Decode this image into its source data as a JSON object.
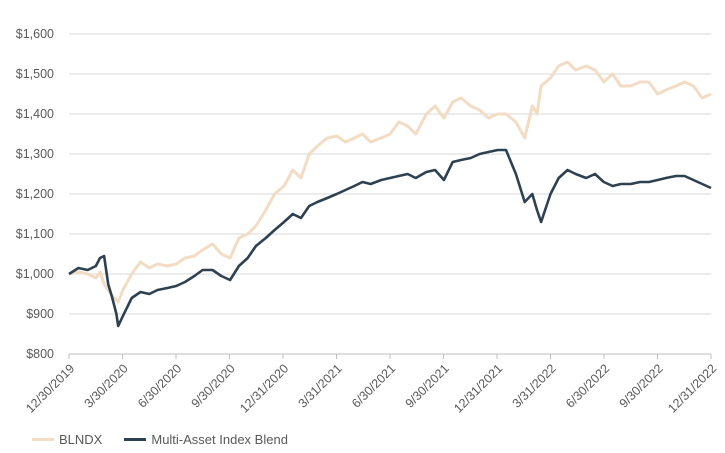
{
  "chart_data": {
    "type": "line",
    "title": "",
    "xlabel": "",
    "ylabel": "",
    "ylim": [
      800,
      1600
    ],
    "yticks": [
      "$800",
      "$900",
      "$1,000",
      "$1,100",
      "$1,200",
      "$1,300",
      "$1,400",
      "$1,500",
      "$1,600"
    ],
    "xticks": [
      "12/30/2019",
      "3/30/2020",
      "6/30/2020",
      "9/30/2020",
      "12/31/2020",
      "3/31/2021",
      "6/30/2021",
      "9/30/2021",
      "12/31/2021",
      "3/31/2022",
      "6/30/2022",
      "9/30/2022",
      "12/31/2022"
    ],
    "grid": "horizontal",
    "legend_position": "bottom-left",
    "x": [
      "2019-12-30",
      "2020-01-15",
      "2020-01-31",
      "2020-02-14",
      "2020-02-21",
      "2020-02-28",
      "2020-03-06",
      "2020-03-13",
      "2020-03-20",
      "2020-03-23",
      "2020-03-31",
      "2020-04-15",
      "2020-04-30",
      "2020-05-15",
      "2020-05-29",
      "2020-06-15",
      "2020-06-30",
      "2020-07-15",
      "2020-07-31",
      "2020-08-14",
      "2020-08-31",
      "2020-09-15",
      "2020-09-30",
      "2020-10-15",
      "2020-10-30",
      "2020-11-13",
      "2020-11-30",
      "2020-12-15",
      "2020-12-31",
      "2021-01-15",
      "2021-01-29",
      "2021-02-12",
      "2021-02-26",
      "2021-03-15",
      "2021-03-31",
      "2021-04-15",
      "2021-04-30",
      "2021-05-14",
      "2021-05-28",
      "2021-06-15",
      "2021-06-30",
      "2021-07-15",
      "2021-07-30",
      "2021-08-13",
      "2021-08-31",
      "2021-09-15",
      "2021-09-30",
      "2021-10-15",
      "2021-10-29",
      "2021-11-15",
      "2021-11-30",
      "2021-12-15",
      "2021-12-31",
      "2022-01-14",
      "2022-01-31",
      "2022-02-15",
      "2022-02-28",
      "2022-03-08",
      "2022-03-15",
      "2022-03-31",
      "2022-04-14",
      "2022-04-29",
      "2022-05-13",
      "2022-05-31",
      "2022-06-15",
      "2022-06-30",
      "2022-07-15",
      "2022-07-29",
      "2022-08-15",
      "2022-08-31",
      "2022-09-15",
      "2022-09-30",
      "2022-10-14",
      "2022-10-31",
      "2022-11-15",
      "2022-11-30",
      "2022-12-15",
      "2022-12-30"
    ],
    "series": [
      {
        "name": "BLNDX",
        "color": "#f2dcc3",
        "values": [
          1000,
          1005,
          1000,
          990,
          1005,
          975,
          960,
          945,
          935,
          930,
          960,
          1000,
          1030,
          1015,
          1025,
          1020,
          1025,
          1040,
          1045,
          1060,
          1075,
          1050,
          1040,
          1090,
          1100,
          1120,
          1160,
          1200,
          1220,
          1260,
          1240,
          1300,
          1320,
          1340,
          1345,
          1330,
          1340,
          1350,
          1330,
          1340,
          1350,
          1380,
          1370,
          1350,
          1400,
          1420,
          1390,
          1430,
          1440,
          1420,
          1410,
          1390,
          1400,
          1400,
          1380,
          1340,
          1420,
          1400,
          1470,
          1490,
          1520,
          1530,
          1510,
          1520,
          1510,
          1480,
          1500,
          1470,
          1470,
          1480,
          1480,
          1450,
          1460,
          1470,
          1480,
          1470,
          1440,
          1450
        ]
      },
      {
        "name": "Multi-Asset Index Blend",
        "color": "#2e4150",
        "values": [
          1000,
          1015,
          1010,
          1020,
          1040,
          1045,
          975,
          940,
          900,
          870,
          895,
          940,
          955,
          950,
          960,
          965,
          970,
          980,
          995,
          1010,
          1010,
          995,
          985,
          1020,
          1040,
          1070,
          1090,
          1110,
          1130,
          1150,
          1140,
          1170,
          1180,
          1190,
          1200,
          1210,
          1220,
          1230,
          1225,
          1235,
          1240,
          1245,
          1250,
          1240,
          1255,
          1260,
          1235,
          1280,
          1285,
          1290,
          1300,
          1305,
          1310,
          1310,
          1250,
          1180,
          1200,
          1160,
          1130,
          1200,
          1240,
          1260,
          1250,
          1240,
          1250,
          1230,
          1220,
          1225,
          1225,
          1230,
          1230,
          1235,
          1240,
          1245,
          1245,
          1235,
          1225,
          1215
        ]
      }
    ]
  }
}
